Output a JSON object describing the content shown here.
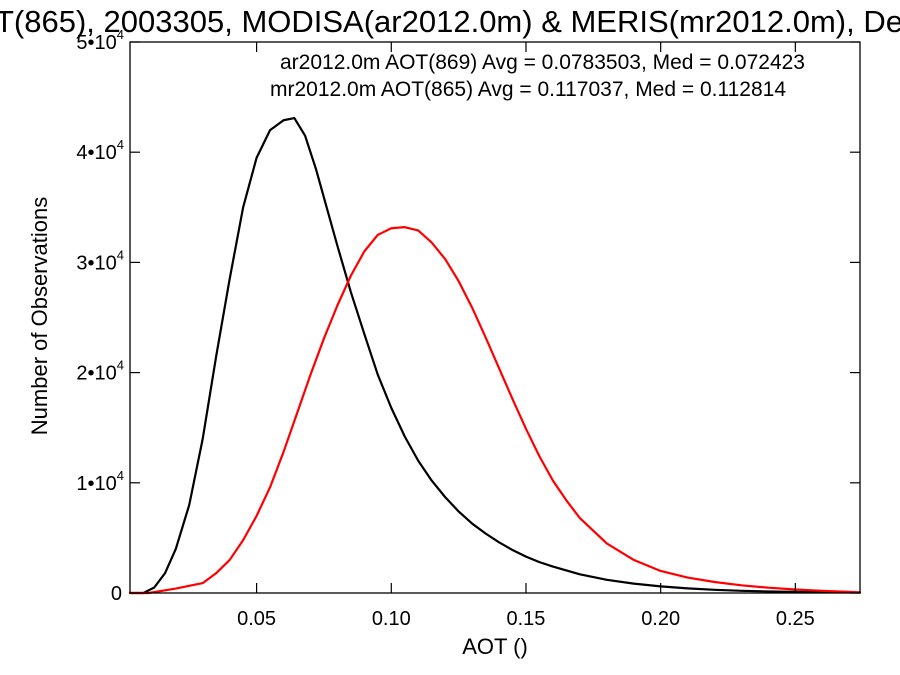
{
  "chart_data": {
    "type": "line",
    "title": "T(865), 2003305, MODISA(ar2012.0m) & MERIS(mr2012.0m), De",
    "xlabel": "AOT ()",
    "ylabel": "Number of Observations",
    "xlim": [
      0.003,
      0.274
    ],
    "ylim": [
      0,
      50000
    ],
    "x_ticks": [
      {
        "value": 0.05,
        "label": "0.05"
      },
      {
        "value": 0.1,
        "label": "0.10"
      },
      {
        "value": 0.15,
        "label": "0.15"
      },
      {
        "value": 0.2,
        "label": "0.20"
      },
      {
        "value": 0.25,
        "label": "0.25"
      }
    ],
    "y_ticks": [
      {
        "value": 0,
        "label": "0",
        "mantissa": "",
        "exponent": ""
      },
      {
        "value": 10000,
        "label": "1•10",
        "mantissa": "1•10",
        "exponent": "4"
      },
      {
        "value": 20000,
        "label": "2•10",
        "mantissa": "2•10",
        "exponent": "4"
      },
      {
        "value": 30000,
        "label": "3•10",
        "mantissa": "3•10",
        "exponent": "4"
      },
      {
        "value": 40000,
        "label": "4•10",
        "mantissa": "4•10",
        "exponent": "4"
      },
      {
        "value": 50000,
        "label": "5•10",
        "mantissa": "5•10",
        "exponent": "4"
      }
    ],
    "grid": false,
    "legend_position": "top-right",
    "series": [
      {
        "name": "ar2012.0m AOT(869) Avg = 0.0783503, Med = 0.072423",
        "color": "#000000",
        "x": [
          0.003,
          0.008,
          0.012,
          0.016,
          0.02,
          0.025,
          0.03,
          0.035,
          0.04,
          0.045,
          0.05,
          0.055,
          0.06,
          0.064,
          0.068,
          0.072,
          0.076,
          0.08,
          0.085,
          0.09,
          0.095,
          0.1,
          0.105,
          0.11,
          0.115,
          0.12,
          0.125,
          0.13,
          0.135,
          0.14,
          0.145,
          0.15,
          0.155,
          0.16,
          0.17,
          0.18,
          0.19,
          0.2,
          0.21,
          0.22,
          0.23,
          0.24,
          0.25,
          0.26,
          0.27,
          0.274
        ],
        "y": [
          0,
          0,
          500,
          1800,
          4000,
          8000,
          14000,
          21500,
          28500,
          35000,
          39500,
          42000,
          42900,
          43100,
          41500,
          38500,
          35000,
          31500,
          27300,
          23500,
          19800,
          16800,
          14200,
          12000,
          10200,
          8700,
          7400,
          6300,
          5400,
          4600,
          3900,
          3300,
          2800,
          2400,
          1700,
          1200,
          850,
          600,
          420,
          290,
          200,
          140,
          100,
          70,
          50,
          40
        ]
      },
      {
        "name": "mr2012.0m AOT(865) Avg = 0.117037, Med = 0.112814",
        "color": "#ff0000",
        "x": [
          0.003,
          0.01,
          0.02,
          0.03,
          0.035,
          0.04,
          0.045,
          0.05,
          0.055,
          0.06,
          0.065,
          0.07,
          0.075,
          0.08,
          0.085,
          0.09,
          0.095,
          0.1,
          0.105,
          0.11,
          0.115,
          0.12,
          0.125,
          0.13,
          0.135,
          0.14,
          0.145,
          0.15,
          0.155,
          0.16,
          0.165,
          0.17,
          0.18,
          0.19,
          0.2,
          0.21,
          0.22,
          0.23,
          0.24,
          0.25,
          0.26,
          0.27,
          0.274
        ],
        "y": [
          0,
          0,
          400,
          900,
          1800,
          3000,
          4800,
          7000,
          9600,
          12800,
          16300,
          19800,
          23100,
          26100,
          28800,
          31000,
          32500,
          33100,
          33200,
          32900,
          31800,
          30300,
          28300,
          25900,
          23200,
          20400,
          17600,
          14900,
          12400,
          10200,
          8400,
          6800,
          4500,
          3000,
          2000,
          1400,
          1000,
          700,
          480,
          320,
          200,
          100,
          60
        ]
      }
    ]
  }
}
